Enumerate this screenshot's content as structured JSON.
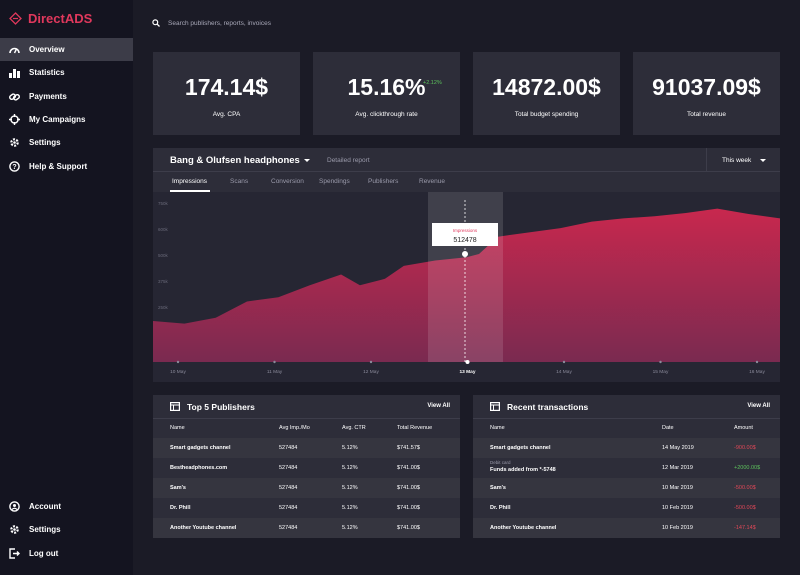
{
  "app": {
    "name": "DirectADS",
    "accent": "#e0385c"
  },
  "sidebar": {
    "items": [
      {
        "label": "Overview",
        "icon": "gauge-icon",
        "active": true
      },
      {
        "label": "Statistics",
        "icon": "bar-chart-icon"
      },
      {
        "label": "Payments",
        "icon": "link-icon"
      },
      {
        "label": "My Campaigns",
        "icon": "target-icon"
      },
      {
        "label": "Settings",
        "icon": "gear-icon"
      },
      {
        "label": "Help & Support",
        "icon": "help-icon"
      }
    ],
    "bottom": [
      {
        "label": "Account",
        "icon": "user-icon"
      },
      {
        "label": "Settings",
        "icon": "gear-icon"
      },
      {
        "label": "Log out",
        "icon": "logout-icon"
      }
    ]
  },
  "search": {
    "placeholder": "Search publishers, reports, invoices"
  },
  "kpis": [
    {
      "value": "174.14$",
      "label": "Avg. CPA"
    },
    {
      "value": "15.16%",
      "label": "Avg. clickthrough rate",
      "change": "+2.12%"
    },
    {
      "value": "14872.00$",
      "label": "Total budget spending"
    },
    {
      "value": "91037.09$",
      "label": "Total revenue"
    }
  ],
  "chart": {
    "title": "Bang  & Olufsen headphones",
    "detail": "Detailed report",
    "period": "This week",
    "tabs": [
      "Impressions",
      "Scans",
      "Conversion",
      "Spendings",
      "Publishers",
      "Revenue"
    ],
    "tooltip": {
      "label": "Impressions",
      "value": "512478"
    },
    "xlabels": [
      "10 May",
      "11 May",
      "12 May",
      "13 May",
      "14 May",
      "15 May",
      "16 May"
    ]
  },
  "chart_data": {
    "type": "area",
    "ylim": [
      0,
      750
    ],
    "yticks": [
      "750k",
      "600k",
      "500k",
      "375k",
      "250k",
      "125k"
    ],
    "y": [
      190,
      178,
      205,
      280,
      300,
      355,
      405,
      355,
      385,
      445,
      470,
      485,
      500,
      580,
      600,
      620,
      650,
      665,
      675,
      690,
      710,
      685,
      665
    ],
    "x": [
      0,
      0.5,
      1,
      1.5,
      2,
      2.5,
      3,
      3.3,
      3.7,
      4,
      4.5,
      5,
      5.2,
      5.5,
      6,
      6.5,
      7,
      7.5,
      8,
      8.5,
      9,
      9.5,
      10
    ],
    "categories": [
      "10 May",
      "11 May",
      "12 May",
      "13 May",
      "14 May",
      "15 May",
      "16 May"
    ]
  },
  "publishers": {
    "title": "Top 5 Publishers",
    "view_all": "View All",
    "columns": [
      "Name",
      "Avg Imp./Mo",
      "Avg. CTR",
      "Total Revenue"
    ],
    "rows": [
      [
        "Smart gadgets channel",
        "527484",
        "5.12%",
        "$741.57$"
      ],
      [
        "Bestheadphones.com",
        "527484",
        "5.12%",
        "$741.00$"
      ],
      [
        "Sam's",
        "527484",
        "5.12%",
        "$741.00$"
      ],
      [
        "Dr. Phill",
        "527484",
        "5.12%",
        "$741.00$"
      ],
      [
        "Another Youtube channel",
        "527484",
        "5.12%",
        "$741.00$"
      ]
    ]
  },
  "transactions": {
    "title": "Recent transactions",
    "view_all": "View All",
    "columns": [
      "Name",
      "Date",
      "Amount"
    ],
    "rows": [
      {
        "name": "Smart gadgets channel",
        "sub": "",
        "date": "14 May 2019",
        "amount": "-900.00$",
        "type": "neg"
      },
      {
        "name": "Funds added from *-5748",
        "sub": "Debit card",
        "date": "12 Mar 2019",
        "amount": "+2000.00$",
        "type": "pos"
      },
      {
        "name": "Sam's",
        "sub": "",
        "date": "10 Mar 2019",
        "amount": "-500.00$",
        "type": "neg"
      },
      {
        "name": "Dr. Phill",
        "sub": "",
        "date": "10 Feb 2019",
        "amount": "-500.00$",
        "type": "neg"
      },
      {
        "name": "Another Youtube channel",
        "sub": "",
        "date": "10 Feb 2019",
        "amount": "-147.14$",
        "type": "neg"
      }
    ]
  }
}
